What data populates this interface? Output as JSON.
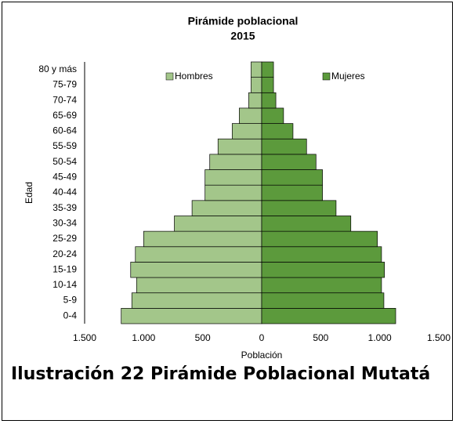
{
  "chart_data": {
    "type": "pyramid",
    "title": "Pirámide poblacional",
    "subtitle": "2015",
    "x_label": "Población",
    "y_label": "Edad",
    "categories": [
      "0-4",
      "5-9",
      "10-14",
      "15-19",
      "20-24",
      "25-29",
      "30-34",
      "35-39",
      "40-44",
      "45-49",
      "50-54",
      "55-59",
      "60-64",
      "65-69",
      "70-74",
      "75-79",
      "80 y más"
    ],
    "series": [
      {
        "name": "Hombres",
        "color": "#a3c68a",
        "values": [
          1190,
          1100,
          1060,
          1110,
          1070,
          1000,
          740,
          590,
          480,
          480,
          440,
          370,
          250,
          190,
          110,
          90,
          90
        ]
      },
      {
        "name": "Mujeres",
        "color": "#5c9a3c",
        "values": [
          1135,
          1035,
          1015,
          1040,
          1015,
          980,
          755,
          630,
          515,
          515,
          460,
          380,
          265,
          185,
          120,
          100,
          100
        ]
      }
    ],
    "xlim": [
      -1500,
      1500
    ],
    "xticks": [
      {
        "value": -1500,
        "label": "1.500"
      },
      {
        "value": -1000,
        "label": "1.000"
      },
      {
        "value": -500,
        "label": "500"
      },
      0,
      500,
      {
        "value": 1000,
        "label": "1.000"
      },
      {
        "value": 1500,
        "label": "1.500"
      }
    ]
  },
  "caption": "Ilustración 22 Pirámide Poblacional Mutatá"
}
